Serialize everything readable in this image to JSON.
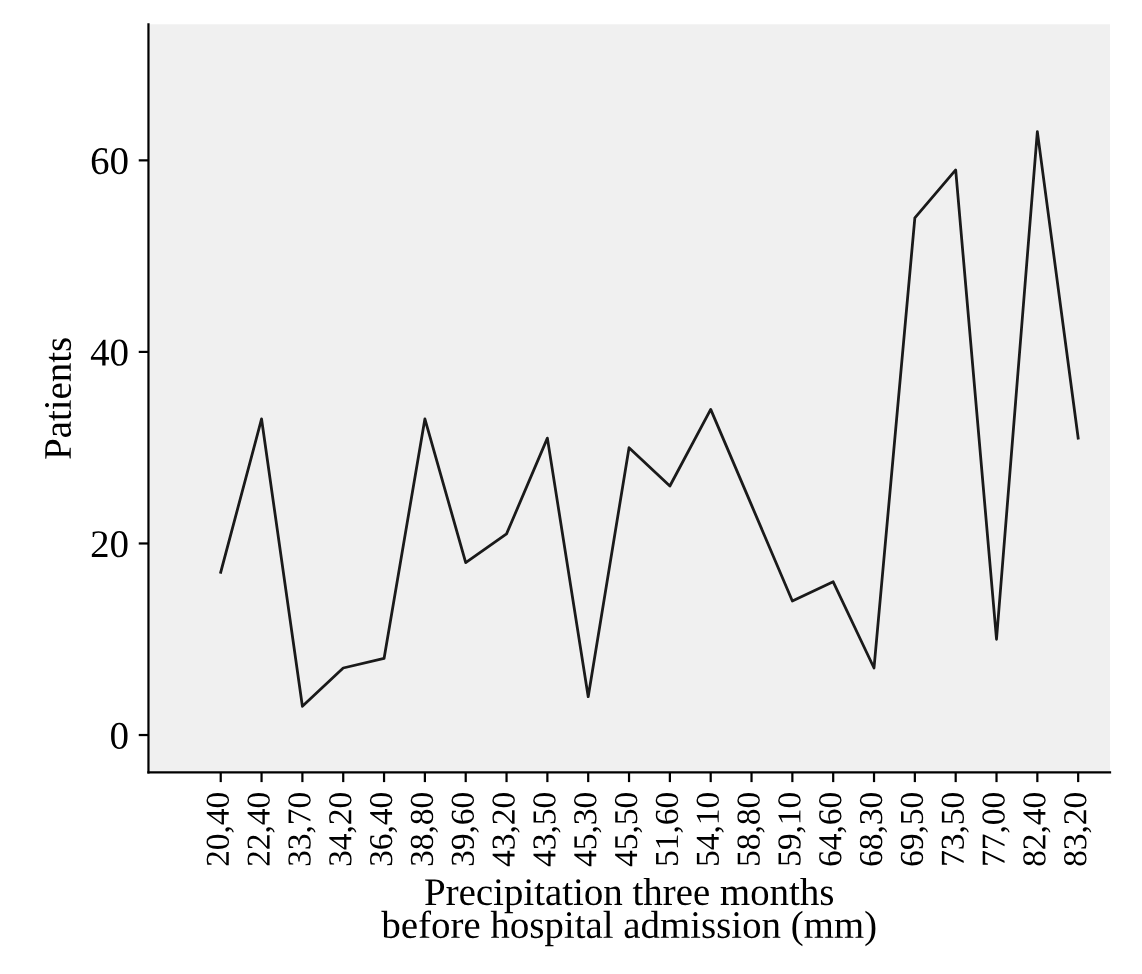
{
  "chart_data": {
    "type": "line",
    "xlabel": "Precipitation three months\nbefore hospital admission (mm)",
    "ylabel": "Patients",
    "categories": [
      "20,40",
      "22,40",
      "33,70",
      "34,20",
      "36,40",
      "38,80",
      "39,60",
      "43,20",
      "43,50",
      "45,30",
      "45,50",
      "51,60",
      "54,10",
      "58,80",
      "59,10",
      "64,60",
      "68,30",
      "69,50",
      "73,50",
      "77,00",
      "82,40",
      "83,20"
    ],
    "series": [
      {
        "color": "#1a1a1a",
        "values": [
          17,
          33,
          3,
          7,
          8,
          33,
          18,
          21,
          31,
          4,
          30,
          26,
          34,
          24,
          14,
          16,
          7,
          54,
          59,
          10,
          63,
          31
        ]
      }
    ],
    "ylim": [
      -3.9,
      74.2
    ],
    "yticks": [
      0,
      20,
      40,
      60
    ],
    "grid": false,
    "marker": "none",
    "line_style": "solid"
  }
}
